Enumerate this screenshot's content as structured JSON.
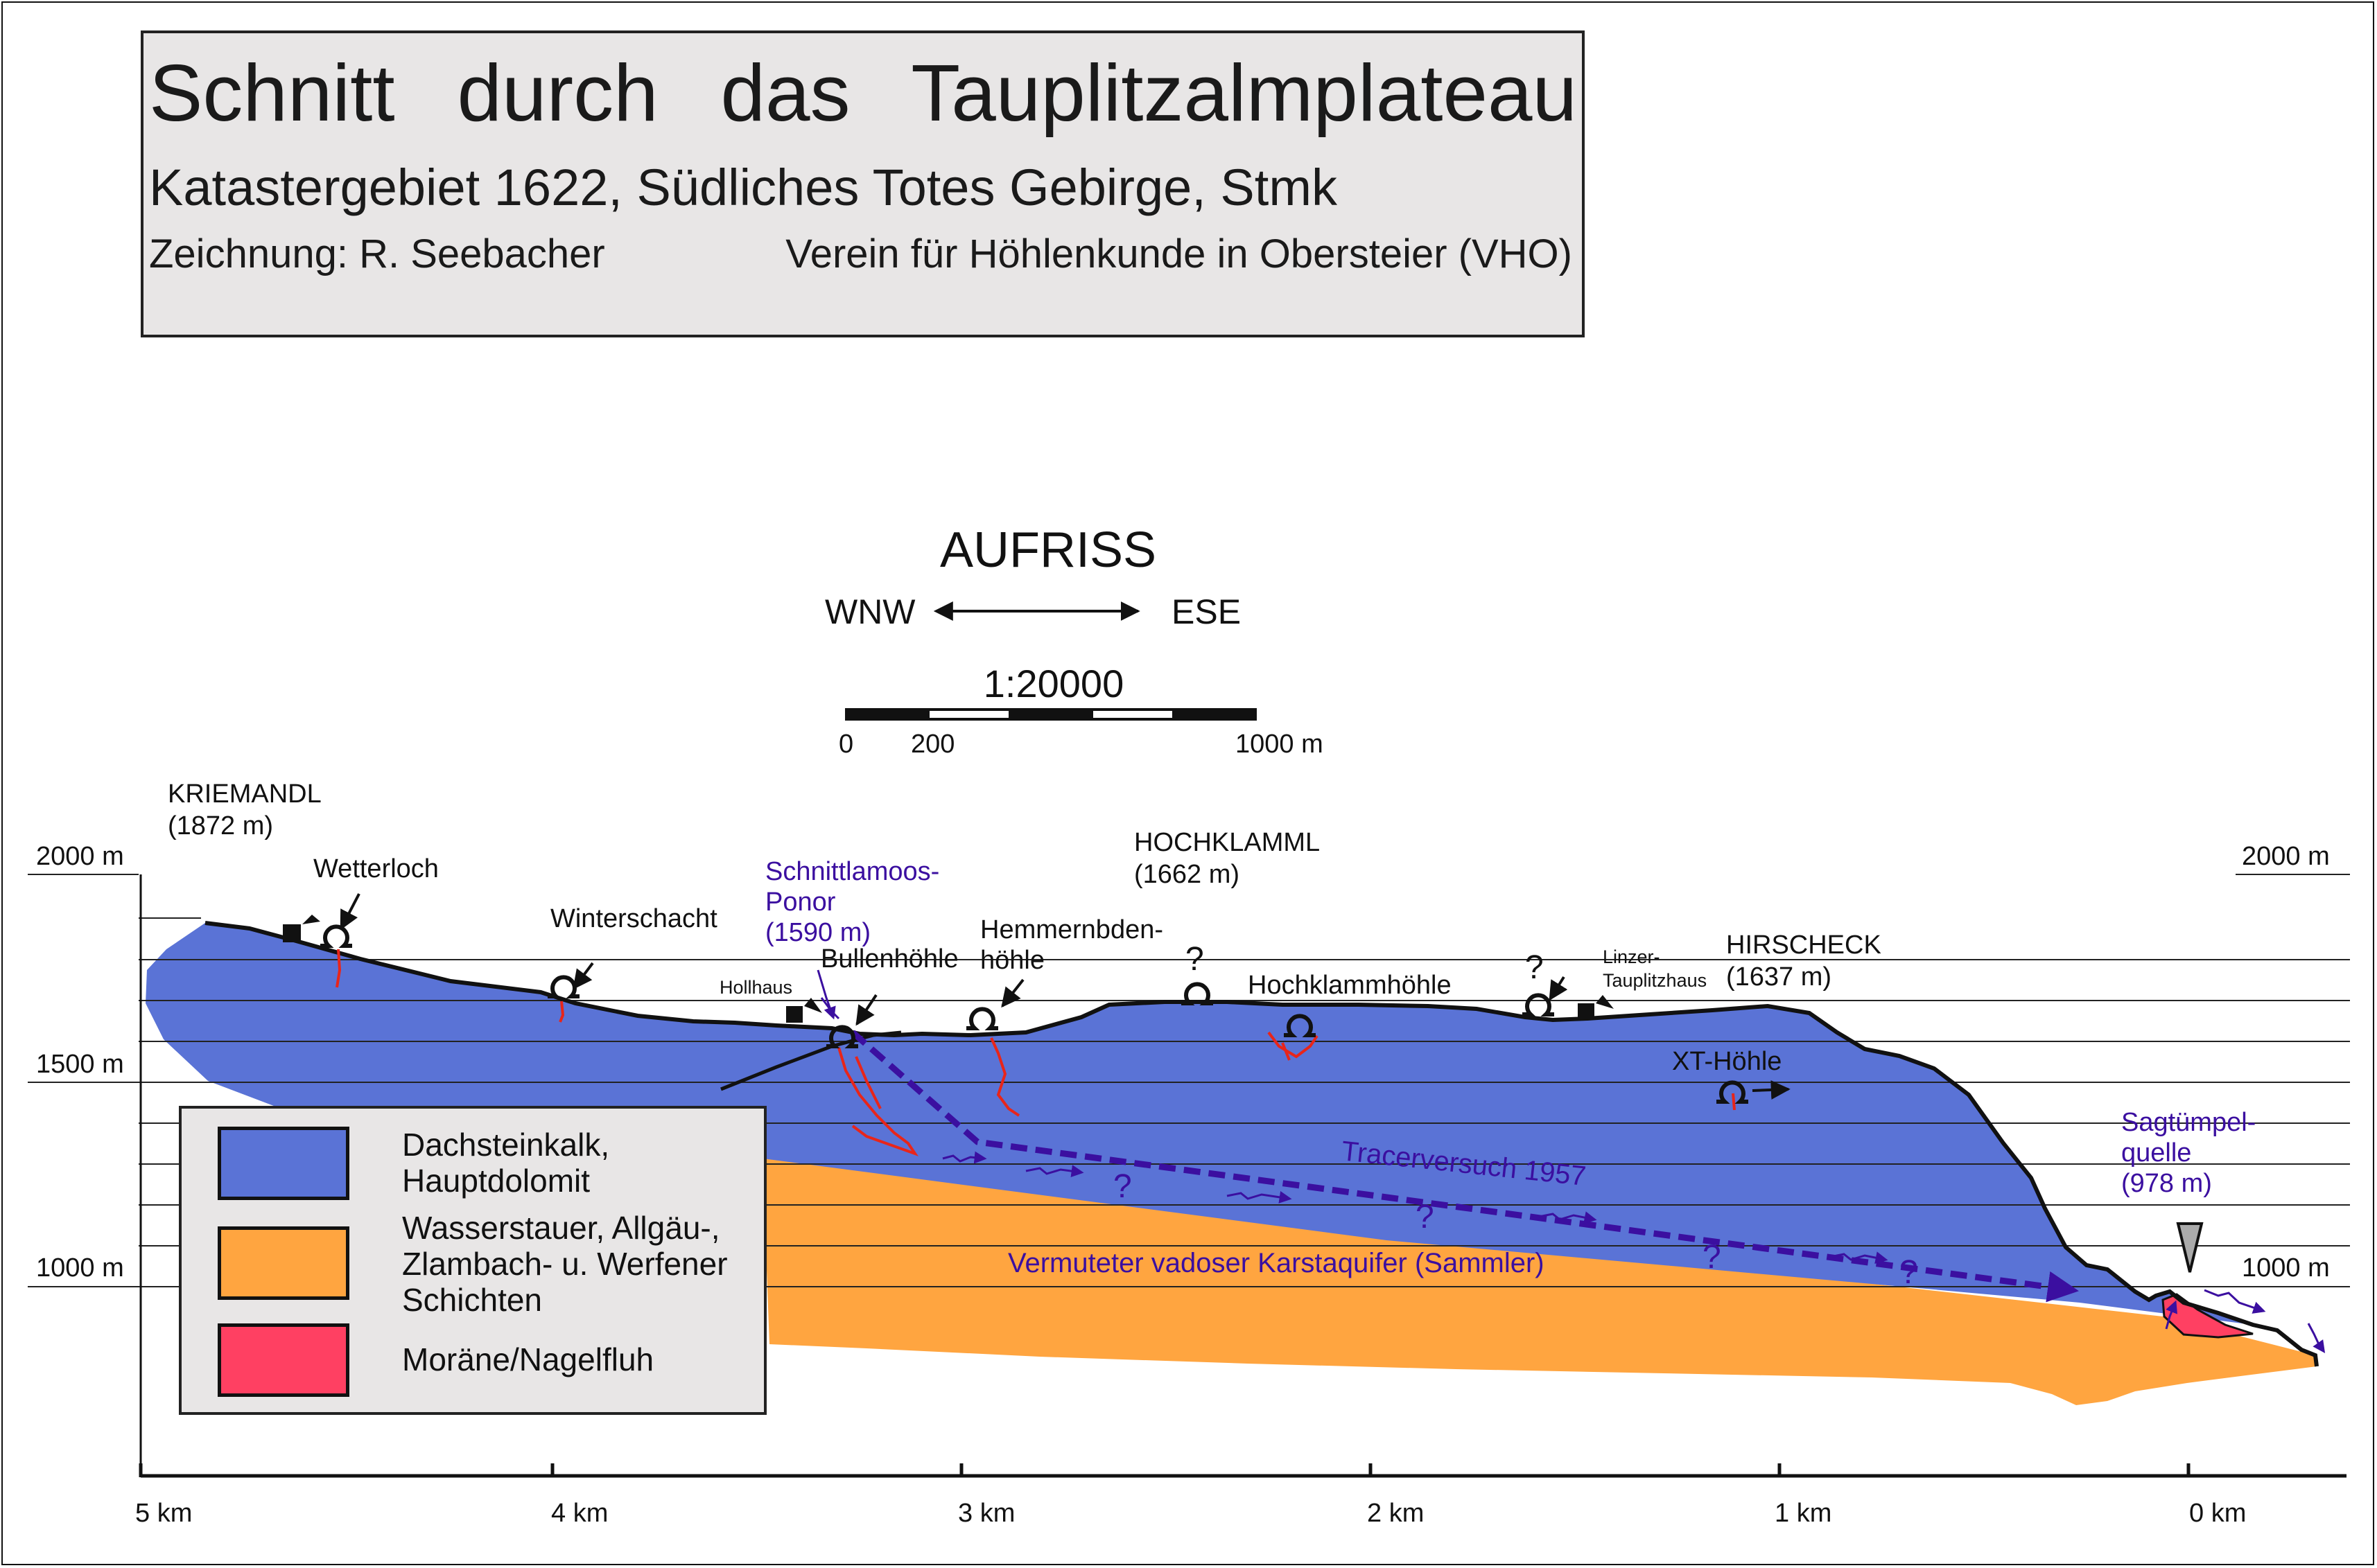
{
  "title": {
    "main": "Schnitt durch das Tauplitzalmplateau",
    "subtitle": "Katastergebiet 1622, Südliches Totes Gebirge,  Stmk",
    "drawing": "Zeichnung: R. Seebacher",
    "club": "Verein für Höhlenkunde in Obersteier (VHO)"
  },
  "view": {
    "heading": "AUFRISS",
    "west": "WNW",
    "east": "ESE",
    "scale": "1:20000",
    "scale_ticks": [
      "0",
      "200",
      "1000 m"
    ]
  },
  "elevation_labels": {
    "left": [
      "2000 m",
      "1500 m",
      "1000 m"
    ],
    "right": [
      "2000 m",
      "1000 m"
    ]
  },
  "distance_labels": [
    "5 km",
    "4 km",
    "3 km",
    "2 km",
    "1 km",
    "0 km"
  ],
  "peaks": [
    {
      "name": "KRIEMANDL",
      "elevation": "(1872 m)"
    },
    {
      "name": "HOCHKLAMML",
      "elevation": "(1662 m)"
    },
    {
      "name": "HIRSCHECK",
      "elevation": "(1637 m)"
    }
  ],
  "features": {
    "wetterloch": "Wetterloch",
    "winterschacht": "Winterschacht",
    "ponor_line1": "Schnittlamoos-",
    "ponor_line2": "Ponor",
    "ponor_line3": "(1590 m)",
    "bullenhoehle": "Bullenhöhle",
    "hollhaus": "Hollhaus",
    "hemmern_line1": "Hemmernbden-",
    "hemmern_line2": "höhle",
    "hochklammhoehle": "Hochklammhöhle",
    "linzer_line1": "Linzer-",
    "linzer_line2": "Tauplitzhaus",
    "xt_hoehle": "XT-Höhle",
    "spring_line1": "Sagtümpel-",
    "spring_line2": "quelle",
    "spring_line3": "(978 m)",
    "tracer": "Tracerversuch 1957",
    "aquifer": "Vermuteter vadoser Karstaquifer (Sammler)",
    "question_mark": "?"
  },
  "legend": [
    {
      "lines": [
        "Dachsteinkalk,",
        "Hauptdolomit"
      ],
      "color": "#5a73d6"
    },
    {
      "lines": [
        "Wasserstauer, Allgäu-,",
        "Zlambach- u. Werfener",
        "Schichten"
      ],
      "color": "#ffa540"
    },
    {
      "lines": [
        "Moräne/Nagelfluh"
      ],
      "color": "#ff4062"
    }
  ],
  "colors": {
    "limestone": "#5a73d6",
    "aquitard": "#ffa540",
    "moraine": "#ff4062",
    "tracer": "#3b0fa0",
    "cave_passage": "#e8251a"
  }
}
